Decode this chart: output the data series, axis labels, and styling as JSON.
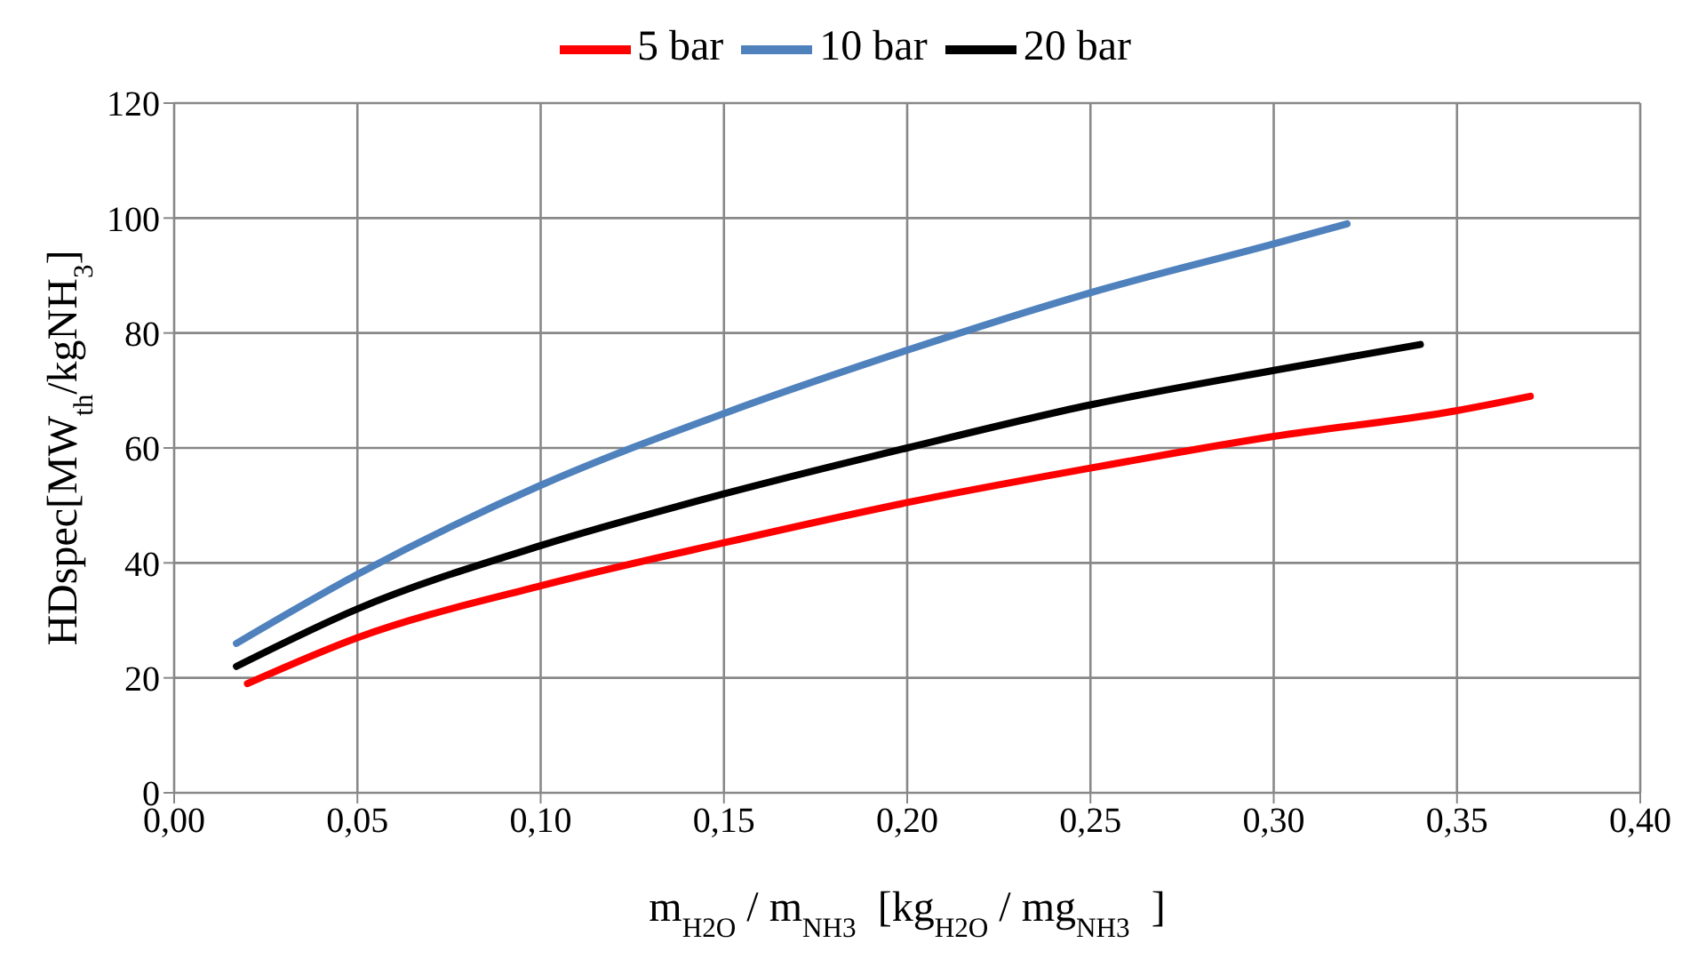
{
  "chart_data": {
    "type": "line",
    "xlabel": "m$_{H2O}$ / m$_{NH3}$  [kg$_{H2O}$ / mg$_{NH3}$  ]",
    "ylabel": "HDspec[MW$_{th}$/kgNH$_{3}$]",
    "series": [
      {
        "name": "5 bar",
        "color": "#ff0000",
        "x": [
          0.02,
          0.05,
          0.1,
          0.15,
          0.2,
          0.25,
          0.3,
          0.35,
          0.37
        ],
        "values": [
          19,
          27,
          36,
          43.5,
          50.5,
          56.5,
          62,
          66.5,
          69
        ]
      },
      {
        "name": "10 bar",
        "color": "#4f81bd",
        "x": [
          0.017,
          0.05,
          0.1,
          0.15,
          0.2,
          0.25,
          0.3,
          0.32
        ],
        "values": [
          26,
          38,
          53.5,
          66,
          77,
          87,
          95.5,
          99
        ]
      },
      {
        "name": "20 bar",
        "color": "#000000",
        "x": [
          0.017,
          0.05,
          0.1,
          0.15,
          0.2,
          0.25,
          0.3,
          0.34
        ],
        "values": [
          22,
          32,
          43,
          52,
          60,
          67.5,
          73.5,
          78
        ]
      }
    ],
    "xlim": [
      0,
      0.4
    ],
    "xticks": [
      {
        "value": 0,
        "label": "0,00"
      },
      {
        "value": 0.05,
        "label": "0,05"
      },
      {
        "value": 0.1,
        "label": "0,10"
      },
      {
        "value": 0.15,
        "label": "0,15"
      },
      {
        "value": 0.2,
        "label": "0,20"
      },
      {
        "value": 0.25,
        "label": "0,25"
      },
      {
        "value": 0.3,
        "label": "0,30"
      },
      {
        "value": 0.35,
        "label": "0,35"
      },
      {
        "value": 0.4,
        "label": "0,40"
      }
    ],
    "ylim": [
      0,
      120
    ],
    "yticks": [
      0,
      20,
      40,
      60,
      80,
      100,
      120
    ],
    "grid": true,
    "legend": "top",
    "marker": "none",
    "line_style": "solid"
  }
}
